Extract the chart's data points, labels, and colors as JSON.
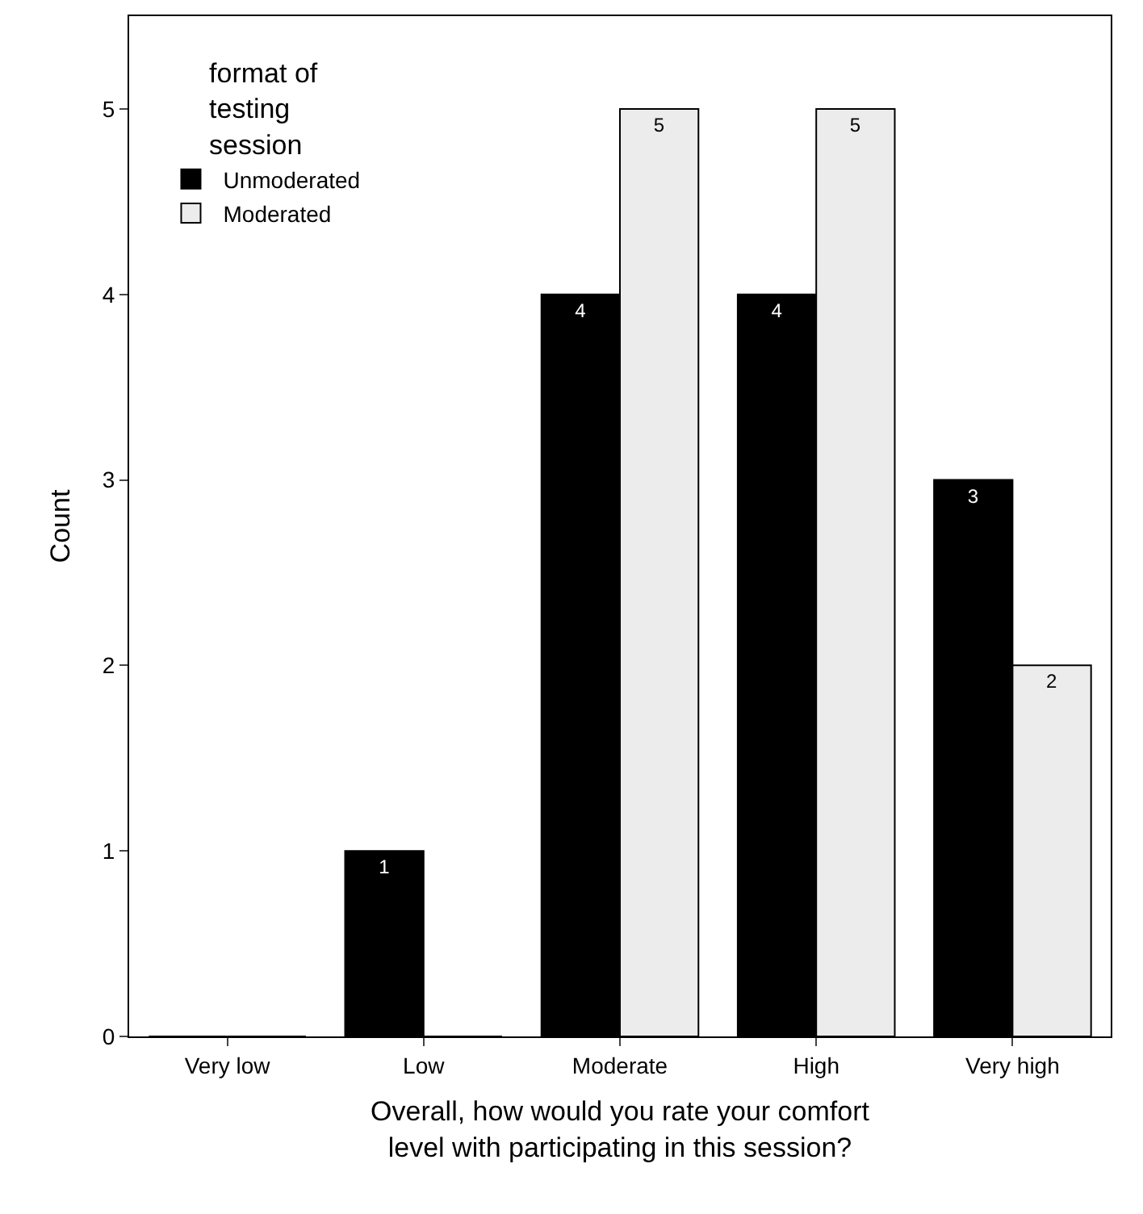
{
  "chart_data": {
    "type": "bar",
    "xlabel": "Overall, how would you rate your comfort level with participating in this session?",
    "ylabel": "Count",
    "legend_title": "format of testing session",
    "categories": [
      "Very low",
      "Low",
      "Moderate",
      "High",
      "Very high"
    ],
    "series": [
      {
        "name": "Unmoderated",
        "color": "#000000",
        "values": [
          0,
          1,
          4,
          4,
          3
        ],
        "value_labels": [
          null,
          "1",
          "4",
          "4",
          "3"
        ]
      },
      {
        "name": "Moderated",
        "color": "#ececec",
        "values": [
          0,
          0,
          5,
          5,
          2
        ],
        "value_labels": [
          null,
          null,
          "5",
          "5",
          "2"
        ]
      }
    ],
    "ylim": [
      0,
      5.5
    ],
    "yticks": [
      0,
      1,
      2,
      3,
      4,
      5
    ],
    "legend": "top left"
  }
}
